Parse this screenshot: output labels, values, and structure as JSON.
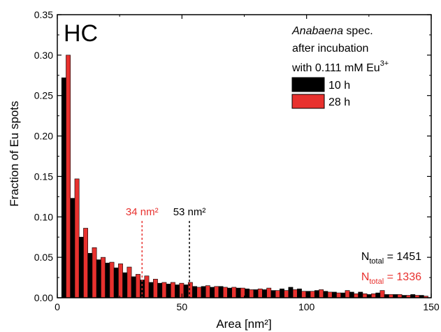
{
  "chart_data": {
    "type": "bar",
    "panel_label": "HC",
    "xlabel": "Area [nm²]",
    "ylabel": "Fraction of Eu spots",
    "xlim": [
      0,
      150
    ],
    "ylim": [
      0,
      0.35
    ],
    "x_ticks": [
      0,
      50,
      100,
      150
    ],
    "y_ticks": [
      "0.00",
      "0.05",
      "0.10",
      "0.15",
      "0.20",
      "0.25",
      "0.30",
      "0.35"
    ],
    "bin_width": 3.5,
    "x": [
      3.5,
      7,
      10.5,
      14,
      17.5,
      21,
      24.5,
      28,
      31.5,
      35,
      38.5,
      42,
      45.5,
      49,
      52.5,
      56,
      59.5,
      63,
      66.5,
      70,
      73.5,
      77,
      80.5,
      84,
      87.5,
      91,
      94.5,
      98,
      101.5,
      105,
      108.5,
      112,
      115.5,
      119,
      122.5,
      126,
      129.5,
      133,
      136.5,
      140,
      143.5,
      147
    ],
    "legend": {
      "title_parts": [
        "Anabaena",
        " spec.",
        "after incubation",
        "with 0.111 mM Eu",
        "3+"
      ],
      "position": "top-right"
    },
    "series": [
      {
        "name": "10 h",
        "color": "#000000",
        "values": [
          0.272,
          0.123,
          0.075,
          0.055,
          0.047,
          0.043,
          0.037,
          0.031,
          0.026,
          0.022,
          0.019,
          0.018,
          0.017,
          0.016,
          0.016,
          0.014,
          0.014,
          0.013,
          0.014,
          0.012,
          0.012,
          0.011,
          0.01,
          0.01,
          0.009,
          0.011,
          0.013,
          0.011,
          0.008,
          0.009,
          0.008,
          0.007,
          0.006,
          0.007,
          0.007,
          0.004,
          0.006,
          0.004,
          0.004,
          0.003,
          0.004,
          0.003
        ]
      },
      {
        "name": "28 h",
        "color": "#e8312e",
        "values": [
          0.3,
          0.147,
          0.086,
          0.062,
          0.05,
          0.044,
          0.042,
          0.038,
          0.029,
          0.027,
          0.023,
          0.019,
          0.019,
          0.018,
          0.019,
          0.013,
          0.015,
          0.014,
          0.013,
          0.013,
          0.012,
          0.01,
          0.011,
          0.012,
          0.009,
          0.009,
          0.01,
          0.008,
          0.008,
          0.01,
          0.007,
          0.006,
          0.009,
          0.005,
          0.005,
          0.005,
          0.009,
          0.004,
          0.004,
          0.003,
          0.003,
          0.002
        ]
      }
    ],
    "annotations": [
      {
        "text": "34 nm²",
        "x": 34,
        "y_top": 0.095,
        "color": "#e8312e"
      },
      {
        "text": "53 nm²",
        "x": 53,
        "y_top": 0.095,
        "color": "#000000"
      }
    ],
    "ntotal": [
      {
        "prefix": "N",
        "sub": "total",
        "suffix": " = 1451",
        "color": "#000000"
      },
      {
        "prefix": "N",
        "sub": "total",
        "suffix": " = 1336",
        "color": "#e8312e"
      }
    ]
  }
}
